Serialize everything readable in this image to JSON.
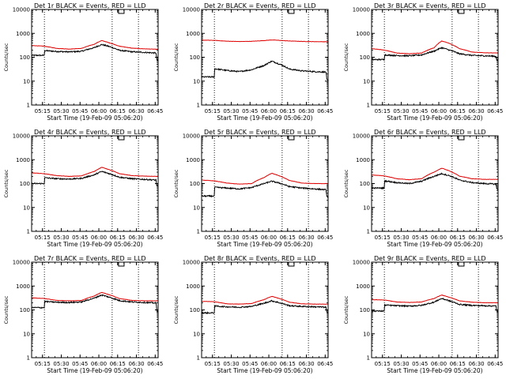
{
  "figure": {
    "background": "#ffffff",
    "colors": {
      "events": "#000000",
      "lld": "#e00000",
      "axis": "#000000"
    },
    "grid": false,
    "legend": "none",
    "panel_count": 9
  },
  "chart_data": [
    {
      "type": "line",
      "title": "Det 1r BLACK = Events, RED = LLD",
      "xlabel": "Start Time (19-Feb-09 05:06:20)",
      "ylabel": "Counts/sec",
      "x_ticks": [
        "05:15",
        "05:30",
        "05:45",
        "06:00",
        "06:15",
        "06:30",
        "06:45"
      ],
      "x_tick_minutes": [
        8.67,
        23.67,
        38.67,
        53.67,
        68.67,
        83.67,
        98.67
      ],
      "xlim": [
        0,
        101
      ],
      "y_scale": "log",
      "ylim": [
        1,
        10000
      ],
      "y_ticks": [
        "1",
        "10",
        "100",
        "1000",
        "10000"
      ],
      "marker_lines_min": [
        10.2,
        64.3,
        85.3
      ],
      "top_box_min": 69.4,
      "series": [
        {
          "name": "BLACK = Events",
          "color": "#000000",
          "x": [
            0,
            10.2,
            10.3,
            20,
            30,
            40,
            50,
            56,
            62,
            70,
            80,
            90,
            99.6,
            99.7,
            101
          ],
          "y": [
            120,
            120,
            190,
            175,
            168,
            178,
            250,
            340,
            280,
            195,
            170,
            160,
            150,
            80,
            70
          ]
        },
        {
          "name": "RED = LLD",
          "color": "#e00000",
          "x": [
            0,
            10,
            20,
            30,
            40,
            50,
            56,
            62,
            70,
            80,
            90,
            101
          ],
          "y": [
            310,
            290,
            235,
            220,
            235,
            350,
            500,
            400,
            290,
            240,
            225,
            215
          ]
        }
      ]
    },
    {
      "type": "line",
      "title": "Det 2r BLACK = Events, RED = LLD",
      "xlabel": "Start Time (19-Feb-09 05:06:20)",
      "ylabel": "Counts/sec",
      "x_ticks": [
        "05:15",
        "05:30",
        "05:45",
        "06:00",
        "06:15",
        "06:30",
        "06:45"
      ],
      "x_tick_minutes": [
        8.67,
        23.67,
        38.67,
        53.67,
        68.67,
        83.67,
        98.67
      ],
      "xlim": [
        0,
        101
      ],
      "y_scale": "log",
      "ylim": [
        1,
        10000
      ],
      "y_ticks": [
        "1",
        "10",
        "100",
        "1000",
        "10000"
      ],
      "marker_lines_min": [
        10.2,
        64.3,
        85.3
      ],
      "top_box_min": 69.4,
      "series": [
        {
          "name": "BLACK = Events",
          "color": "#000000",
          "x": [
            0,
            10.2,
            10.3,
            20,
            30,
            40,
            50,
            56,
            62,
            70,
            80,
            90,
            99.6,
            99.7,
            101
          ],
          "y": [
            15,
            15,
            33,
            28,
            25,
            30,
            45,
            68,
            52,
            32,
            27,
            25,
            24,
            12,
            10
          ]
        },
        {
          "name": "RED = LLD",
          "color": "#e00000",
          "x": [
            0,
            10,
            20,
            30,
            40,
            50,
            56,
            62,
            70,
            80,
            90,
            101
          ],
          "y": [
            520,
            510,
            470,
            455,
            465,
            500,
            530,
            510,
            480,
            460,
            450,
            445
          ]
        }
      ]
    },
    {
      "type": "line",
      "title": "Det 3r BLACK = Events, RED = LLD",
      "xlabel": "Start Time (19-Feb-09 05:06:20)",
      "ylabel": "Counts/sec",
      "x_ticks": [
        "05:15",
        "05:30",
        "05:45",
        "06:00",
        "06:15",
        "06:30",
        "06:45"
      ],
      "x_tick_minutes": [
        8.67,
        23.67,
        38.67,
        53.67,
        68.67,
        83.67,
        98.67
      ],
      "xlim": [
        0,
        101
      ],
      "y_scale": "log",
      "ylim": [
        1,
        10000
      ],
      "y_ticks": [
        "1",
        "10",
        "100",
        "1000",
        "10000"
      ],
      "marker_lines_min": [
        10.2,
        64.3,
        85.3
      ],
      "top_box_min": 69.4,
      "series": [
        {
          "name": "BLACK = Events",
          "color": "#000000",
          "x": [
            0,
            10.2,
            10.3,
            20,
            30,
            40,
            50,
            56,
            62,
            70,
            80,
            90,
            99.6,
            99.7,
            101
          ],
          "y": [
            80,
            80,
            125,
            118,
            115,
            125,
            180,
            250,
            200,
            140,
            120,
            115,
            110,
            75,
            70
          ]
        },
        {
          "name": "RED = LLD",
          "color": "#e00000",
          "x": [
            0,
            10,
            20,
            30,
            40,
            50,
            56,
            62,
            70,
            80,
            90,
            101
          ],
          "y": [
            230,
            200,
            150,
            140,
            150,
            250,
            480,
            380,
            230,
            165,
            155,
            150
          ]
        }
      ]
    },
    {
      "type": "line",
      "title": "Det 4r BLACK = Events, RED = LLD",
      "xlabel": "Start Time (19-Feb-09 05:06:20)",
      "ylabel": "Counts/sec",
      "x_ticks": [
        "05:15",
        "05:30",
        "05:45",
        "06:00",
        "06:15",
        "06:30",
        "06:45"
      ],
      "x_tick_minutes": [
        8.67,
        23.67,
        38.67,
        53.67,
        68.67,
        83.67,
        98.67
      ],
      "xlim": [
        0,
        101
      ],
      "y_scale": "log",
      "ylim": [
        1,
        10000
      ],
      "y_ticks": [
        "1",
        "10",
        "100",
        "1000",
        "10000"
      ],
      "marker_lines_min": [
        10.2,
        64.3,
        85.3
      ],
      "top_box_min": 69.4,
      "series": [
        {
          "name": "BLACK = Events",
          "color": "#000000",
          "x": [
            0,
            10.2,
            10.3,
            20,
            30,
            40,
            50,
            56,
            62,
            70,
            80,
            90,
            99.6,
            99.7,
            101
          ],
          "y": [
            100,
            100,
            175,
            160,
            155,
            165,
            230,
            320,
            260,
            185,
            160,
            150,
            140,
            80,
            75
          ]
        },
        {
          "name": "RED = LLD",
          "color": "#e00000",
          "x": [
            0,
            10,
            20,
            30,
            40,
            50,
            56,
            62,
            70,
            80,
            90,
            101
          ],
          "y": [
            280,
            260,
            215,
            200,
            210,
            320,
            480,
            380,
            260,
            215,
            205,
            200
          ]
        }
      ]
    },
    {
      "type": "line",
      "title": "Det 5r BLACK = Events, RED = LLD",
      "xlabel": "Start Time (19-Feb-09 05:06:20)",
      "ylabel": "Counts/sec",
      "x_ticks": [
        "05:15",
        "05:30",
        "05:45",
        "06:00",
        "06:15",
        "06:30",
        "06:45"
      ],
      "x_tick_minutes": [
        8.67,
        23.67,
        38.67,
        53.67,
        68.67,
        83.67,
        98.67
      ],
      "xlim": [
        0,
        101
      ],
      "y_scale": "log",
      "ylim": [
        1,
        10000
      ],
      "y_ticks": [
        "1",
        "10",
        "100",
        "1000",
        "10000"
      ],
      "marker_lines_min": [
        10.2,
        64.3,
        85.3
      ],
      "top_box_min": 69.4,
      "series": [
        {
          "name": "BLACK = Events",
          "color": "#000000",
          "x": [
            0,
            10.2,
            10.3,
            20,
            30,
            40,
            50,
            56,
            62,
            70,
            80,
            90,
            99.6,
            99.7,
            101
          ],
          "y": [
            30,
            30,
            70,
            65,
            60,
            68,
            100,
            125,
            105,
            75,
            65,
            60,
            55,
            30,
            25
          ]
        },
        {
          "name": "RED = LLD",
          "color": "#e00000",
          "x": [
            0,
            10,
            20,
            30,
            40,
            50,
            56,
            62,
            70,
            80,
            90,
            101
          ],
          "y": [
            140,
            130,
            105,
            95,
            100,
            180,
            270,
            210,
            135,
            105,
            100,
            100
          ]
        }
      ]
    },
    {
      "type": "line",
      "title": "Det 6r BLACK = Events, RED = LLD",
      "xlabel": "Start Time (19-Feb-09 05:06:20)",
      "ylabel": "Counts/sec",
      "x_ticks": [
        "05:15",
        "05:30",
        "05:45",
        "06:00",
        "06:15",
        "06:30",
        "06:45"
      ],
      "x_tick_minutes": [
        8.67,
        23.67,
        38.67,
        53.67,
        68.67,
        83.67,
        98.67
      ],
      "xlim": [
        0,
        101
      ],
      "y_scale": "log",
      "ylim": [
        1,
        10000
      ],
      "y_ticks": [
        "1",
        "10",
        "100",
        "1000",
        "10000"
      ],
      "marker_lines_min": [
        10.2,
        64.3,
        85.3
      ],
      "top_box_min": 69.4,
      "series": [
        {
          "name": "BLACK = Events",
          "color": "#000000",
          "x": [
            0,
            10.2,
            10.3,
            20,
            30,
            40,
            50,
            56,
            62,
            70,
            80,
            90,
            99.6,
            99.7,
            101
          ],
          "y": [
            65,
            65,
            130,
            110,
            100,
            125,
            200,
            260,
            215,
            140,
            110,
            100,
            95,
            60,
            55
          ]
        },
        {
          "name": "RED = LLD",
          "color": "#e00000",
          "x": [
            0,
            10,
            20,
            30,
            40,
            50,
            56,
            62,
            70,
            80,
            90,
            101
          ],
          "y": [
            230,
            210,
            160,
            145,
            160,
            300,
            440,
            340,
            205,
            160,
            150,
            150
          ]
        }
      ]
    },
    {
      "type": "line",
      "title": "Det 7r BLACK = Events, RED = LLD",
      "xlabel": "Start Time (19-Feb-09 05:06:20)",
      "ylabel": "Counts/sec",
      "x_ticks": [
        "05:15",
        "05:30",
        "05:45",
        "06:00",
        "06:15",
        "06:30",
        "06:45"
      ],
      "x_tick_minutes": [
        8.67,
        23.67,
        38.67,
        53.67,
        68.67,
        83.67,
        98.67
      ],
      "xlim": [
        0,
        101
      ],
      "y_scale": "log",
      "ylim": [
        1,
        10000
      ],
      "y_ticks": [
        "1",
        "10",
        "100",
        "1000",
        "10000"
      ],
      "marker_lines_min": [
        10.2,
        64.3,
        85.3
      ],
      "top_box_min": 69.4,
      "series": [
        {
          "name": "BLACK = Events",
          "color": "#000000",
          "x": [
            0,
            10.2,
            10.3,
            20,
            30,
            40,
            50,
            56,
            62,
            70,
            80,
            90,
            99.6,
            99.7,
            101
          ],
          "y": [
            125,
            125,
            225,
            210,
            205,
            215,
            310,
            420,
            340,
            245,
            215,
            205,
            195,
            90,
            85
          ]
        },
        {
          "name": "RED = LLD",
          "color": "#e00000",
          "x": [
            0,
            10,
            20,
            30,
            40,
            50,
            56,
            62,
            70,
            80,
            90,
            101
          ],
          "y": [
            320,
            300,
            250,
            240,
            250,
            380,
            540,
            430,
            300,
            250,
            240,
            240
          ]
        }
      ]
    },
    {
      "type": "line",
      "title": "Det 8r BLACK = Events, RED = LLD",
      "xlabel": "Start Time (19-Feb-09 05:06:20)",
      "ylabel": "Counts/sec",
      "x_ticks": [
        "05:15",
        "05:30",
        "05:45",
        "06:00",
        "06:15",
        "06:30",
        "06:45"
      ],
      "x_tick_minutes": [
        8.67,
        23.67,
        38.67,
        53.67,
        68.67,
        83.67,
        98.67
      ],
      "xlim": [
        0,
        101
      ],
      "y_scale": "log",
      "ylim": [
        1,
        10000
      ],
      "y_ticks": [
        "1",
        "10",
        "100",
        "1000",
        "10000"
      ],
      "marker_lines_min": [
        10.2,
        64.3,
        85.3
      ],
      "top_box_min": 69.4,
      "series": [
        {
          "name": "BLACK = Events",
          "color": "#000000",
          "x": [
            0,
            10.2,
            10.3,
            20,
            30,
            40,
            50,
            56,
            62,
            70,
            80,
            90,
            99.6,
            99.7,
            101
          ],
          "y": [
            75,
            75,
            145,
            135,
            130,
            140,
            190,
            240,
            200,
            150,
            140,
            135,
            130,
            80,
            75
          ]
        },
        {
          "name": "RED = LLD",
          "color": "#e00000",
          "x": [
            0,
            10,
            20,
            30,
            40,
            50,
            56,
            62,
            70,
            80,
            90,
            101
          ],
          "y": [
            230,
            220,
            180,
            175,
            185,
            270,
            370,
            300,
            210,
            180,
            175,
            175
          ]
        }
      ]
    },
    {
      "type": "line",
      "title": "Det 9r BLACK = Events, RED = LLD",
      "xlabel": "Start Time (19-Feb-09 05:06:20)",
      "ylabel": "Counts/sec",
      "x_ticks": [
        "05:15",
        "05:30",
        "05:45",
        "06:00",
        "06:15",
        "06:30",
        "06:45"
      ],
      "x_tick_minutes": [
        8.67,
        23.67,
        38.67,
        53.67,
        68.67,
        83.67,
        98.67
      ],
      "xlim": [
        0,
        101
      ],
      "y_scale": "log",
      "ylim": [
        1,
        10000
      ],
      "y_ticks": [
        "1",
        "10",
        "100",
        "1000",
        "10000"
      ],
      "marker_lines_min": [
        10.2,
        64.3,
        85.3
      ],
      "top_box_min": 69.4,
      "series": [
        {
          "name": "BLACK = Events",
          "color": "#000000",
          "x": [
            0,
            10.2,
            10.3,
            20,
            30,
            40,
            50,
            56,
            62,
            70,
            80,
            90,
            99.6,
            99.7,
            101
          ],
          "y": [
            90,
            90,
            160,
            150,
            145,
            155,
            210,
            300,
            240,
            170,
            155,
            150,
            145,
            90,
            85
          ]
        },
        {
          "name": "RED = LLD",
          "color": "#e00000",
          "x": [
            0,
            10,
            20,
            30,
            40,
            50,
            56,
            62,
            70,
            80,
            90,
            101
          ],
          "y": [
            270,
            260,
            215,
            205,
            215,
            300,
            420,
            340,
            240,
            210,
            200,
            200
          ]
        }
      ]
    }
  ]
}
